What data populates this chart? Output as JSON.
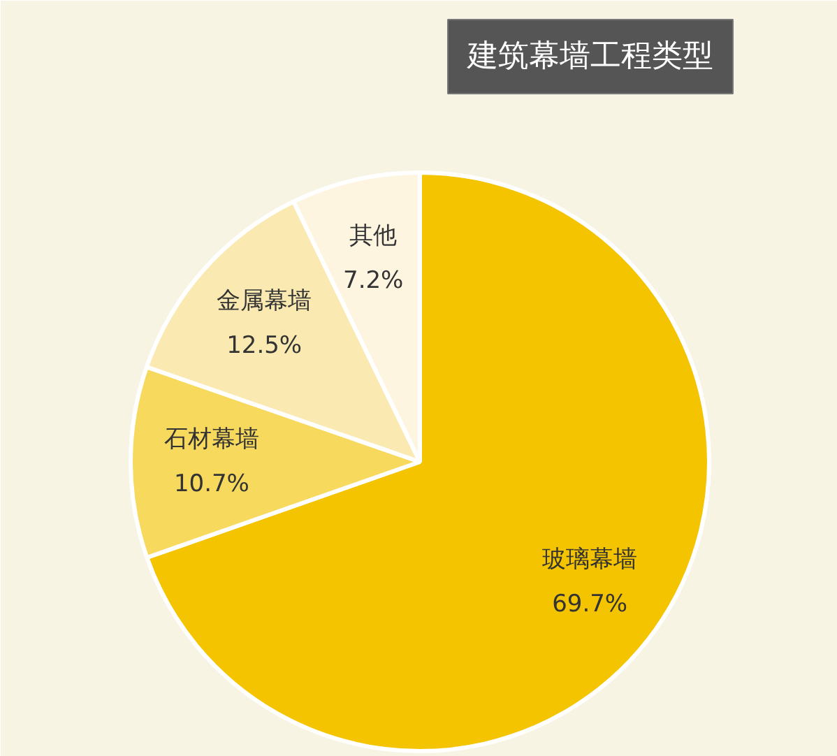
{
  "chart_data": {
    "type": "pie",
    "title": "建筑幕墙工程类型",
    "categories": [
      "玻璃幕墙",
      "石材幕墙",
      "金属幕墙",
      "其他"
    ],
    "values": [
      69.7,
      10.7,
      12.5,
      7.2
    ],
    "colors": [
      "#f5c400",
      "#f7d95e",
      "#faeab2",
      "#fdf5e0"
    ],
    "value_labels": [
      "69.7%",
      "10.7%",
      "12.5%",
      "7.2%"
    ]
  }
}
